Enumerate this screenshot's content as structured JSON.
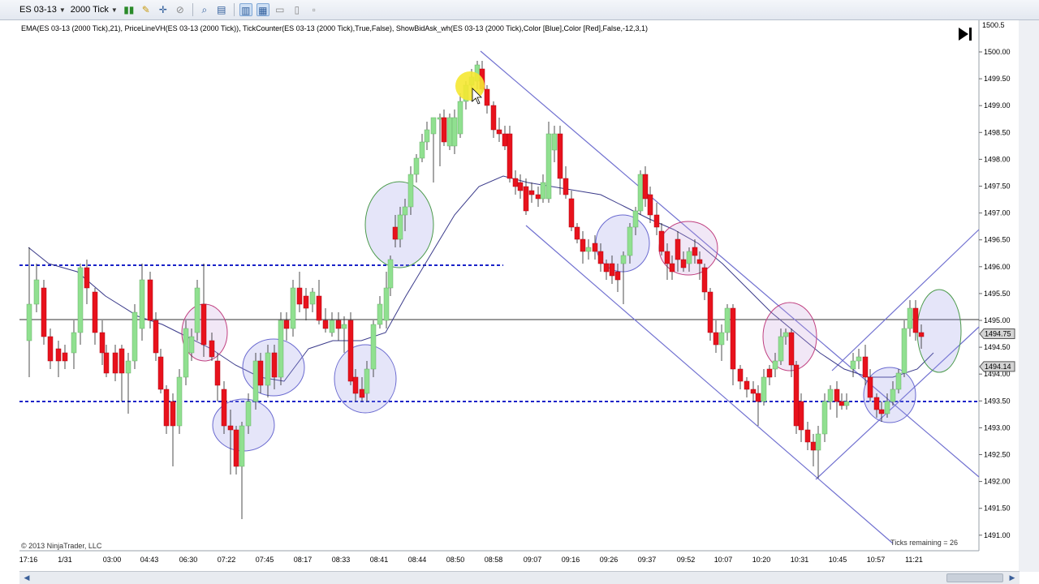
{
  "toolbar": {
    "instrument": "ES 03-13",
    "interval": "2000 Tick"
  },
  "indicator_label": "EMA(ES 03-13 (2000 Tick),21), PriceLineVH(ES 03-13 (2000 Tick)), TickCounter(ES 03-13 (2000 Tick),True,False), ShowBidAsk_wh(ES 03-13 (2000 Tick),Color [Blue],Color [Red],False,-12,3,1)",
  "copyright": "© 2013 NinjaTrader, LLC",
  "ticks_remaining": "Ticks remaining = 26",
  "price_axis": {
    "top_label": "1500.5",
    "labels": [
      "1500.00",
      "1499.50",
      "1499.00",
      "1498.50",
      "1498.00",
      "1497.50",
      "1497.00",
      "1496.50",
      "1496.00",
      "1495.50",
      "1495.00",
      "1494.50",
      "1494.00",
      "1493.50",
      "1493.00",
      "1492.50",
      "1492.00",
      "1491.50",
      "1491.00"
    ],
    "ask_marker": "1494.75",
    "bid_marker": "1494.14"
  },
  "time_axis": [
    "17:16",
    "1/31",
    "03:00",
    "04:43",
    "06:30",
    "07:22",
    "07:45",
    "08:17",
    "08:33",
    "08:41",
    "08:44",
    "08:50",
    "08:58",
    "09:07",
    "09:16",
    "09:26",
    "09:37",
    "09:52",
    "10:07",
    "10:20",
    "10:31",
    "10:45",
    "10:57",
    "11:21"
  ],
  "colors": {
    "up_candle": "#90e090",
    "down_candle": "#e8121c",
    "ema_line": "#3a3a8a",
    "level_line": "#1a22c8",
    "channel_line": "#6a6ad0",
    "circle_fill": "rgba(150,150,230,0.25)"
  },
  "icons": [
    "dropdown-arrow-icon",
    "bar-style-icon",
    "pencil-icon",
    "crosshair-icon",
    "zoom-icon",
    "properties-icon",
    "data-box-icon",
    "chart-trader-icon",
    "chart-icon",
    "tab-icon",
    "scroll-end-icon",
    "scroll-left-icon",
    "scroll-right-icon"
  ]
}
